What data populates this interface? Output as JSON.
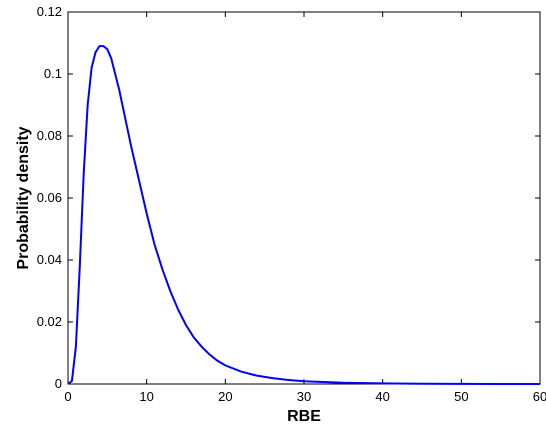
{
  "chart_data": {
    "type": "line",
    "title": "",
    "xlabel": "RBE",
    "ylabel": "Probability density",
    "xlim": [
      0,
      60
    ],
    "ylim": [
      0,
      0.12
    ],
    "x_ticks": [
      0,
      10,
      20,
      30,
      40,
      50,
      60
    ],
    "y_ticks": [
      0,
      0.02,
      0.04,
      0.06,
      0.08,
      0.1,
      0.12
    ],
    "x_tick_labels": [
      "0",
      "10",
      "20",
      "30",
      "40",
      "50",
      "60"
    ],
    "y_tick_labels": [
      "0",
      "0.02",
      "0.04",
      "0.06",
      "0.08",
      "0.1",
      "0.12"
    ],
    "grid": false,
    "line_color": "#0000ff",
    "series": [
      {
        "x": [
          0,
          0.5,
          1,
          1.5,
          2,
          2.5,
          3,
          3.5,
          4,
          4.5,
          5,
          5.5,
          6,
          6.5,
          7,
          7.5,
          8,
          9,
          10,
          11,
          12,
          13,
          14,
          15,
          16,
          17,
          18,
          19,
          20,
          22,
          24,
          26,
          28,
          30,
          32,
          35,
          40,
          45,
          50,
          55,
          60
        ],
        "y": [
          0,
          0.001,
          0.012,
          0.038,
          0.068,
          0.09,
          0.102,
          0.107,
          0.109,
          0.109,
          0.108,
          0.105,
          0.1,
          0.095,
          0.089,
          0.083,
          0.077,
          0.066,
          0.055,
          0.045,
          0.037,
          0.03,
          0.024,
          0.019,
          0.015,
          0.012,
          0.0095,
          0.0075,
          0.006,
          0.004,
          0.0027,
          0.0019,
          0.0013,
          0.0009,
          0.0007,
          0.0004,
          0.0002,
          0.0001,
          5e-05,
          2e-05,
          1e-05
        ]
      }
    ]
  }
}
